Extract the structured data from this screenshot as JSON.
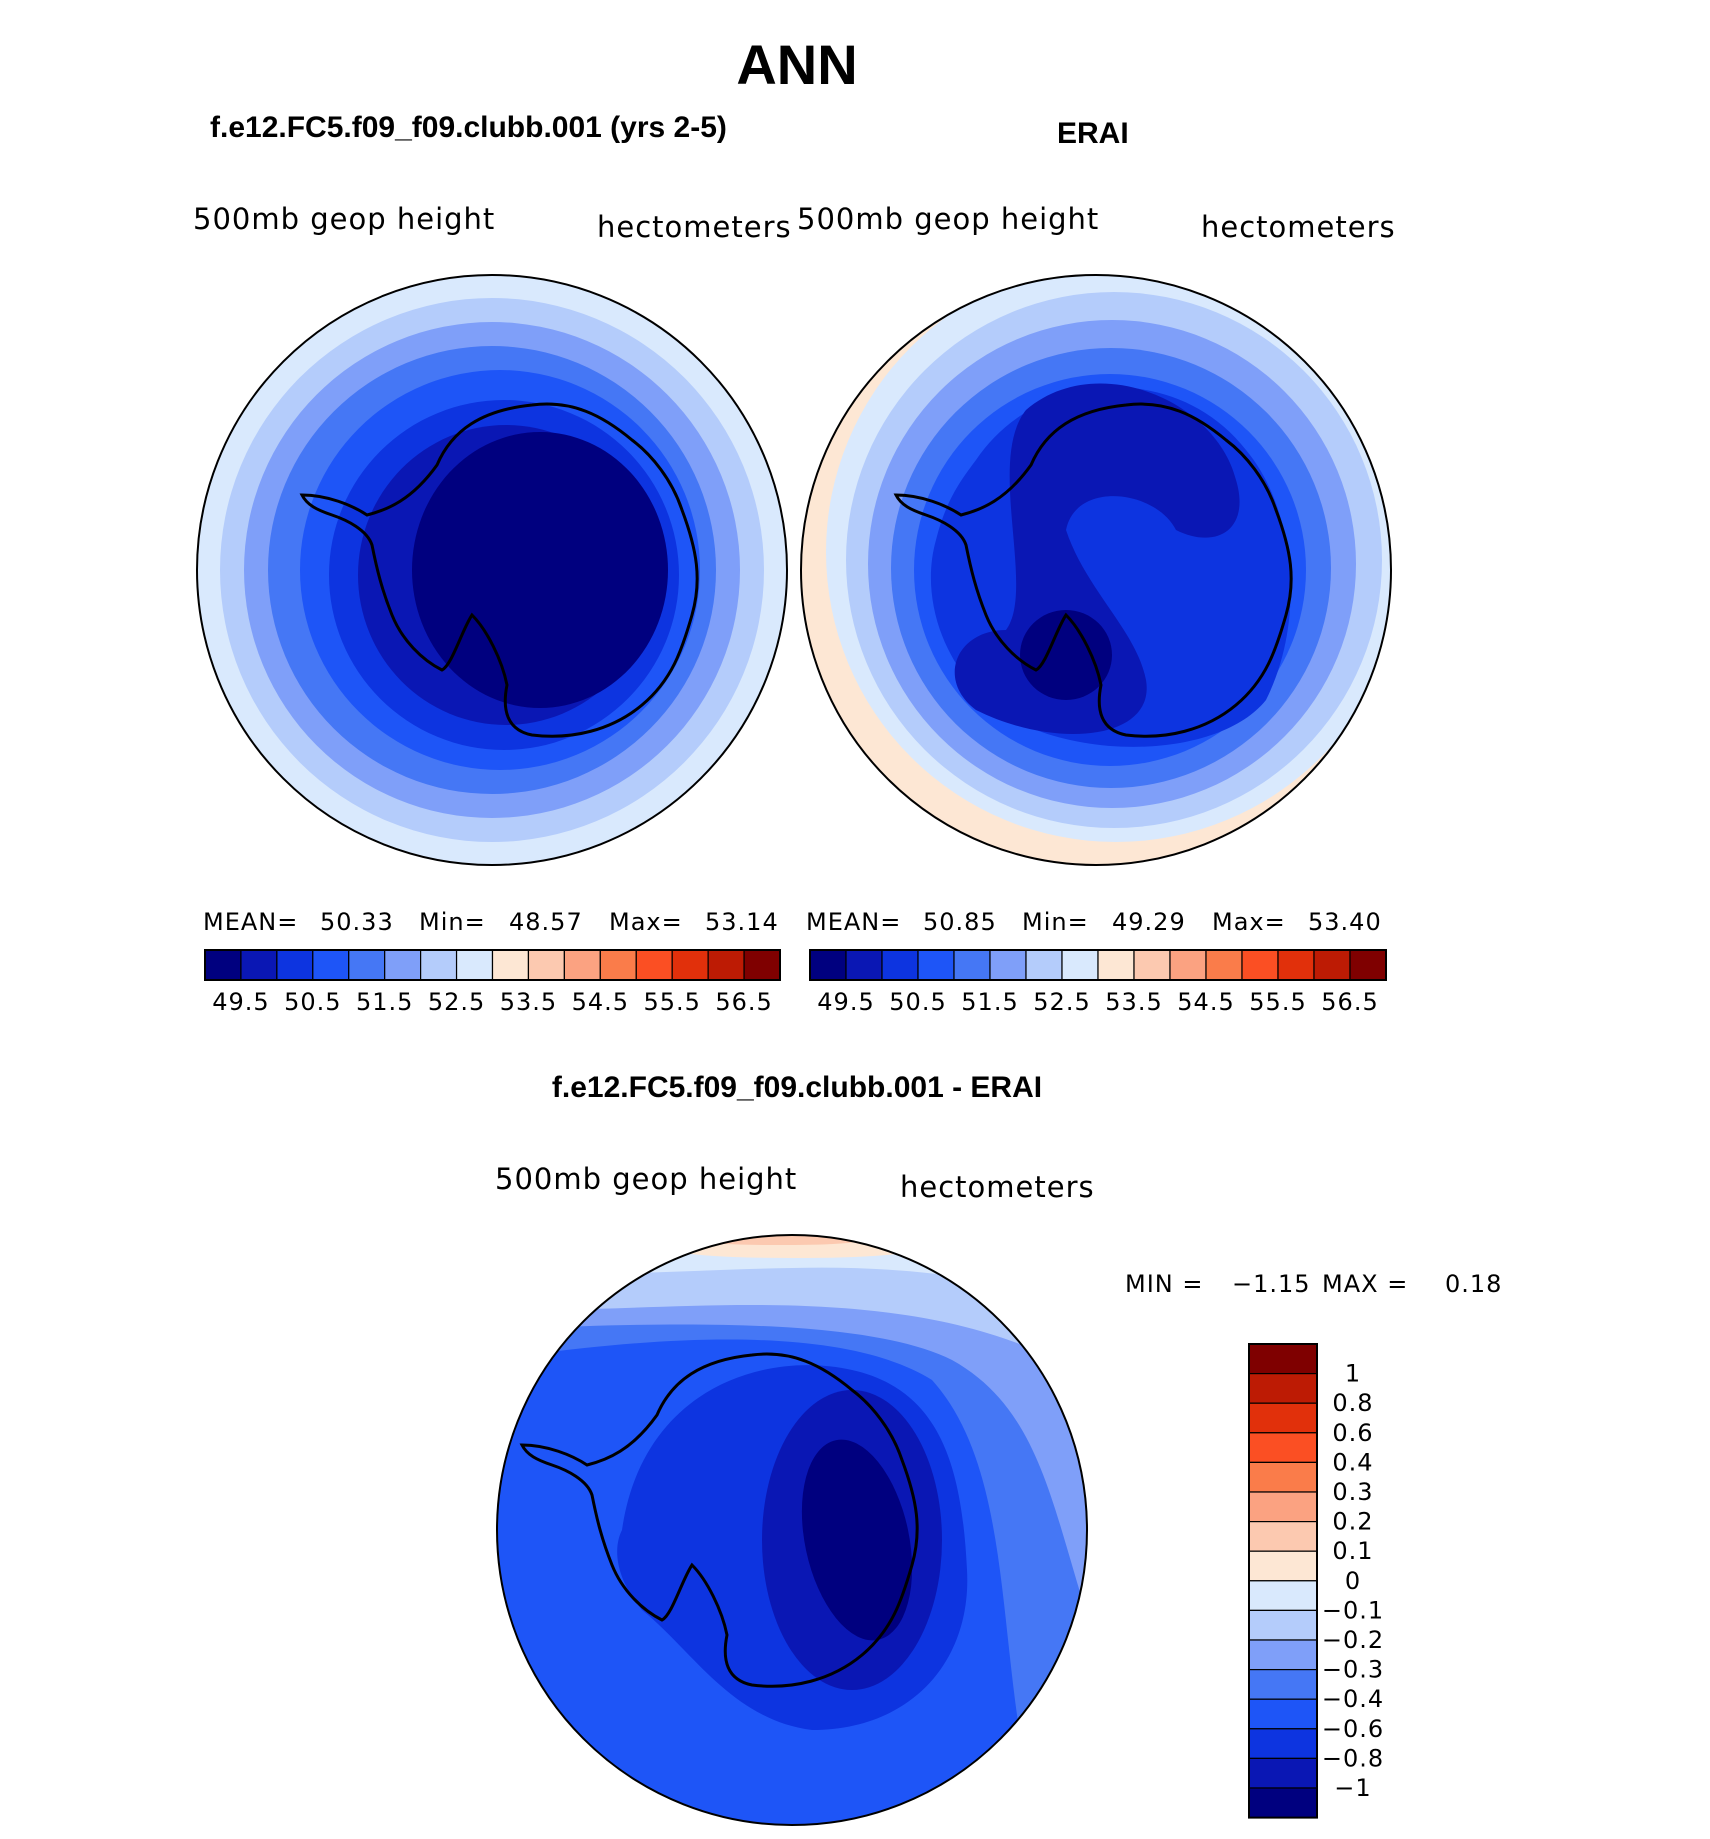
{
  "page_title": "ANN",
  "colors": {
    "ramp": [
      "#00007f",
      "#0a17b4",
      "#0d34e0",
      "#1e55f7",
      "#4577f5",
      "#7f9ff9",
      "#b4ccfb",
      "#d9e9fd",
      "#fde7d4",
      "#fcc9b0",
      "#fba281",
      "#fa7c4a",
      "#fb4f23",
      "#e1300b",
      "#bd1b04",
      "#7f0000"
    ],
    "diff_ramp": [
      "#00007f",
      "#0a17b4",
      "#0d34e0",
      "#1e55f7",
      "#4577f5",
      "#7f9ff9",
      "#b4ccfb",
      "#d9e9fd",
      "#fde7d4",
      "#fcc9b0",
      "#fba281",
      "#fa7c4a",
      "#fb4f23",
      "#e1300b",
      "#bd1b04",
      "#7f0000"
    ]
  },
  "chart_data": [
    {
      "type": "heatmap",
      "projection": "south-polar-stereographic",
      "title": "f.e12.FC5.f09_f09.clubb.001 (yrs 2-5)",
      "left_label": "500mb geop height",
      "right_label": "hectometers",
      "stats": {
        "mean_label": "MEAN=",
        "mean": "50.33",
        "min_label": "Min=",
        "min": "48.57",
        "max_label": "Max=",
        "max": "53.14"
      },
      "contour_levels": [
        49.5,
        50,
        50.5,
        51,
        51.5,
        52,
        52.5,
        53,
        53.5,
        54,
        54.5,
        55,
        55.5,
        56,
        56.5
      ],
      "colorbar_tick_labels": [
        "49.5",
        "50.5",
        "51.5",
        "52.5",
        "53.5",
        "54.5",
        "55.5",
        "56.5"
      ],
      "legend_position": "bottom"
    },
    {
      "type": "heatmap",
      "projection": "south-polar-stereographic",
      "title": "ERAI",
      "left_label": "500mb geop height",
      "right_label": "hectometers",
      "stats": {
        "mean_label": "MEAN=",
        "mean": "50.85",
        "min_label": "Min=",
        "min": "49.29",
        "max_label": "Max=",
        "max": "53.40"
      },
      "contour_levels": [
        49.5,
        50,
        50.5,
        51,
        51.5,
        52,
        52.5,
        53,
        53.5,
        54,
        54.5,
        55,
        55.5,
        56,
        56.5
      ],
      "colorbar_tick_labels": [
        "49.5",
        "50.5",
        "51.5",
        "52.5",
        "53.5",
        "54.5",
        "55.5",
        "56.5"
      ],
      "legend_position": "bottom"
    },
    {
      "type": "heatmap",
      "projection": "south-polar-stereographic",
      "title": "f.e12.FC5.f09_f09.clubb.001 - ERAI",
      "left_label": "500mb geop height",
      "right_label": "hectometers",
      "stats": {
        "min_label": "MIN =",
        "min": "−1.15",
        "max_label": "MAX =",
        "max": "0.18"
      },
      "contour_levels": [
        -1,
        -0.8,
        -0.6,
        -0.4,
        -0.3,
        -0.2,
        -0.1,
        0,
        0.1,
        0.2,
        0.3,
        0.4,
        0.6,
        0.8,
        1
      ],
      "colorbar_tick_labels": [
        "1",
        "0.8",
        "0.6",
        "0.4",
        "0.3",
        "0.2",
        "0.1",
        "0",
        "−0.1",
        "−0.2",
        "−0.3",
        "−0.4",
        "−0.6",
        "−0.8",
        "−1"
      ],
      "legend_position": "right"
    }
  ]
}
